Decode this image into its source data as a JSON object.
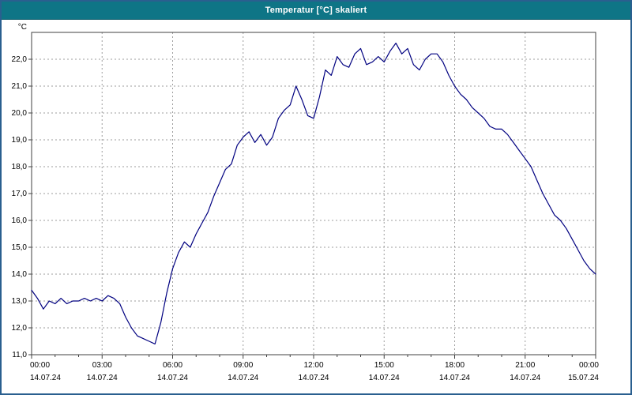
{
  "window": {
    "title": "Temperatur [°C] skaliert"
  },
  "colors": {
    "frame": "#2a5f8f",
    "header_bg": "#0e7586",
    "title_text": "#ffffff",
    "plot_bg": "#ffffff",
    "plot_border": "#404040",
    "grid": "#9e9e9e",
    "tick_text": "#000000",
    "line": "#000080"
  },
  "chart_data": {
    "type": "line",
    "title": "Temperatur [°C] skaliert",
    "ylabel": "°C",
    "xlabel": "",
    "grid": true,
    "legend": "none",
    "ylim": [
      11,
      23
    ],
    "yticks": [
      11,
      12,
      13,
      14,
      15,
      16,
      17,
      18,
      19,
      20,
      21,
      22
    ],
    "ytick_labels": [
      "11,0",
      "12,0",
      "13,0",
      "14,0",
      "15,0",
      "16,0",
      "17,0",
      "18,0",
      "19,0",
      "20,0",
      "21,0",
      "22,0"
    ],
    "xlim_hours": [
      0,
      24
    ],
    "xticks_hours": [
      0,
      3,
      6,
      9,
      12,
      15,
      18,
      21,
      24
    ],
    "xtick_time_labels": [
      "00:00",
      "03:00",
      "06:00",
      "09:00",
      "12:00",
      "15:00",
      "18:00",
      "21:00",
      "00:00"
    ],
    "xtick_date_labels": [
      "14.07.24",
      "14.07.24",
      "14.07.24",
      "14.07.24",
      "14.07.24",
      "14.07.24",
      "14.07.24",
      "14.07.24",
      "15.07.24"
    ],
    "x_start_hour": 0,
    "x_interval_hours": 0.25,
    "series": [
      {
        "name": "Temperatur",
        "unit": "°C",
        "color": "#000080",
        "values": [
          13.4,
          13.1,
          12.7,
          13.0,
          12.9,
          13.1,
          12.9,
          13.0,
          13.0,
          13.1,
          13.0,
          13.1,
          13.0,
          13.2,
          13.1,
          12.9,
          12.4,
          12.0,
          11.7,
          11.6,
          11.5,
          11.4,
          12.2,
          13.3,
          14.2,
          14.8,
          15.2,
          15.0,
          15.5,
          15.9,
          16.3,
          16.9,
          17.4,
          17.9,
          18.1,
          18.8,
          19.1,
          19.3,
          18.9,
          19.2,
          18.8,
          19.1,
          19.8,
          20.1,
          20.3,
          21.0,
          20.5,
          19.9,
          19.8,
          20.6,
          21.6,
          21.4,
          22.1,
          21.8,
          21.7,
          22.2,
          22.4,
          21.8,
          21.9,
          22.1,
          21.9,
          22.3,
          22.6,
          22.2,
          22.4,
          21.8,
          21.6,
          22.0,
          22.2,
          22.2,
          21.9,
          21.4,
          21.0,
          20.7,
          20.5,
          20.2,
          20.0,
          19.8,
          19.5,
          19.4,
          19.4,
          19.2,
          18.9,
          18.6,
          18.3,
          18.0,
          17.5,
          17.0,
          16.6,
          16.2,
          16.0,
          15.7,
          15.3,
          14.9,
          14.5,
          14.2,
          14.0
        ]
      }
    ]
  }
}
